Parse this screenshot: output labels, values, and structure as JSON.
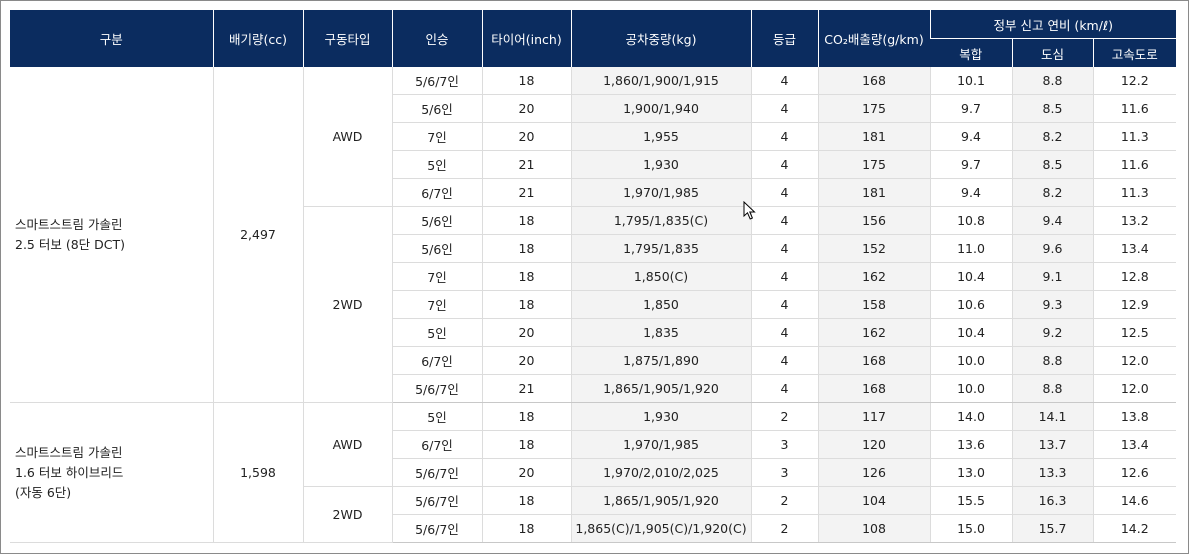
{
  "headers": {
    "category": "구분",
    "displacement": "배기량(cc)",
    "drive_type": "구동타입",
    "seating": "인승",
    "tire": "타이어(inch)",
    "curb_weight": "공차중량(kg)",
    "grade": "등급",
    "co2": "CO₂배출량(g/km)",
    "efficiency_group": "정부 신고 연비 (km/ℓ)",
    "combined": "복합",
    "city": "도심",
    "highway": "고속도로"
  },
  "groups": [
    {
      "engine_lines": [
        "스마트스트림 가솔린",
        "2.5 터보 (8단 DCT)"
      ],
      "displacement": "2,497",
      "drives": [
        {
          "drive": "AWD",
          "rows": [
            {
              "seating": "5/6/7인",
              "tire": "18",
              "weight": "1,860/1,900/1,915",
              "grade": "4",
              "co2": "168",
              "combined": "10.1",
              "city": "8.8",
              "highway": "12.2"
            },
            {
              "seating": "5/6인",
              "tire": "20",
              "weight": "1,900/1,940",
              "grade": "4",
              "co2": "175",
              "combined": "9.7",
              "city": "8.5",
              "highway": "11.6"
            },
            {
              "seating": "7인",
              "tire": "20",
              "weight": "1,955",
              "grade": "4",
              "co2": "181",
              "combined": "9.4",
              "city": "8.2",
              "highway": "11.3"
            },
            {
              "seating": "5인",
              "tire": "21",
              "weight": "1,930",
              "grade": "4",
              "co2": "175",
              "combined": "9.7",
              "city": "8.5",
              "highway": "11.6"
            },
            {
              "seating": "6/7인",
              "tire": "21",
              "weight": "1,970/1,985",
              "grade": "4",
              "co2": "181",
              "combined": "9.4",
              "city": "8.2",
              "highway": "11.3"
            }
          ]
        },
        {
          "drive": "2WD",
          "rows": [
            {
              "seating": "5/6인",
              "tire": "18",
              "weight": "1,795/1,835(C)",
              "grade": "4",
              "co2": "156",
              "combined": "10.8",
              "city": "9.4",
              "highway": "13.2"
            },
            {
              "seating": "5/6인",
              "tire": "18",
              "weight": "1,795/1,835",
              "grade": "4",
              "co2": "152",
              "combined": "11.0",
              "city": "9.6",
              "highway": "13.4"
            },
            {
              "seating": "7인",
              "tire": "18",
              "weight": "1,850(C)",
              "grade": "4",
              "co2": "162",
              "combined": "10.4",
              "city": "9.1",
              "highway": "12.8"
            },
            {
              "seating": "7인",
              "tire": "18",
              "weight": "1,850",
              "grade": "4",
              "co2": "158",
              "combined": "10.6",
              "city": "9.3",
              "highway": "12.9"
            },
            {
              "seating": "5인",
              "tire": "20",
              "weight": "1,835",
              "grade": "4",
              "co2": "162",
              "combined": "10.4",
              "city": "9.2",
              "highway": "12.5"
            },
            {
              "seating": "6/7인",
              "tire": "20",
              "weight": "1,875/1,890",
              "grade": "4",
              "co2": "168",
              "combined": "10.0",
              "city": "8.8",
              "highway": "12.0"
            },
            {
              "seating": "5/6/7인",
              "tire": "21",
              "weight": "1,865/1,905/1,920",
              "grade": "4",
              "co2": "168",
              "combined": "10.0",
              "city": "8.8",
              "highway": "12.0"
            }
          ]
        }
      ]
    },
    {
      "engine_lines": [
        "스마트스트림 가솔린",
        "1.6 터보 하이브리드",
        "(자동 6단)"
      ],
      "displacement": "1,598",
      "drives": [
        {
          "drive": "AWD",
          "rows": [
            {
              "seating": "5인",
              "tire": "18",
              "weight": "1,930",
              "grade": "2",
              "co2": "117",
              "combined": "14.0",
              "city": "14.1",
              "highway": "13.8"
            },
            {
              "seating": "6/7인",
              "tire": "18",
              "weight": "1,970/1,985",
              "grade": "3",
              "co2": "120",
              "combined": "13.6",
              "city": "13.7",
              "highway": "13.4"
            },
            {
              "seating": "5/6/7인",
              "tire": "20",
              "weight": "1,970/2,010/2,025",
              "grade": "3",
              "co2": "126",
              "combined": "13.0",
              "city": "13.3",
              "highway": "12.6"
            }
          ]
        },
        {
          "drive": "2WD",
          "rows": [
            {
              "seating": "5/6/7인",
              "tire": "18",
              "weight": "1,865/1,905/1,920",
              "grade": "2",
              "co2": "104",
              "combined": "15.5",
              "city": "16.3",
              "highway": "14.6"
            },
            {
              "seating": "5/6/7인",
              "tire": "18",
              "weight": "1,865(C)/1,905(C)/1,920(C)",
              "grade": "2",
              "co2": "108",
              "combined": "15.0",
              "city": "15.7",
              "highway": "14.2"
            }
          ]
        }
      ]
    }
  ],
  "colors": {
    "header_bg": "#0b2c5f",
    "header_text": "#ffffff",
    "shaded_cell": "#f3f3f3",
    "border": "#dcdcdc"
  },
  "icons": {
    "cursor": "arrow-cursor-icon"
  }
}
